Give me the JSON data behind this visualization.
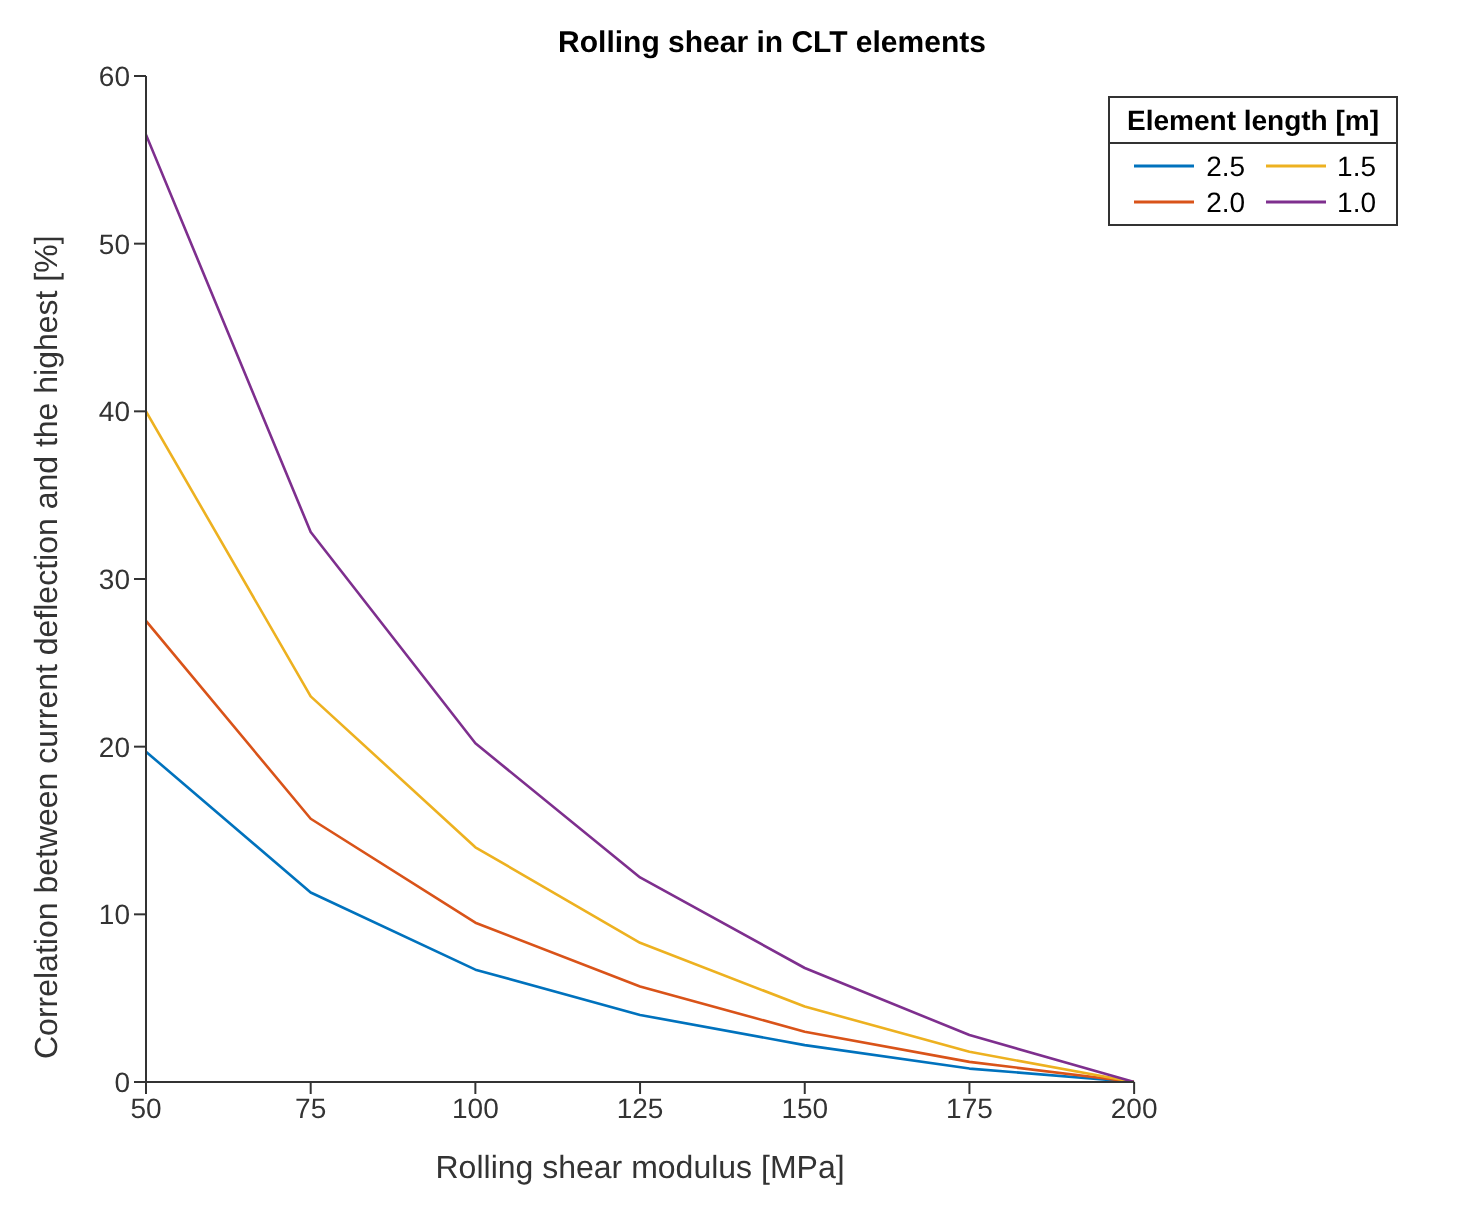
{
  "chart_data": {
    "type": "line",
    "title": "Rolling shear in CLT elements",
    "xlabel": "Rolling shear modulus [MPa]",
    "ylabel": "Correlation between current deflection and the highest [%]",
    "legend_title": "Element length [m]",
    "legend": "top right",
    "grid": false,
    "marker": "none",
    "line_style": "solid",
    "x": [
      50,
      75,
      100,
      125,
      150,
      175,
      200
    ],
    "xlim": [
      50,
      200
    ],
    "xticks": [
      50,
      75,
      100,
      125,
      150,
      175,
      200
    ],
    "ylim": [
      0,
      60
    ],
    "yticks": [
      0,
      10,
      20,
      30,
      40,
      50,
      60
    ],
    "series": [
      {
        "name": "2.5",
        "color": "#0072bd",
        "values": [
          19.7,
          11.3,
          6.7,
          4.0,
          2.2,
          0.8,
          0
        ]
      },
      {
        "name": "2.0",
        "color": "#d95319",
        "values": [
          27.5,
          15.7,
          9.5,
          5.7,
          3.0,
          1.2,
          0
        ]
      },
      {
        "name": "1.5",
        "color": "#edb120",
        "values": [
          40,
          23,
          14,
          8.3,
          4.5,
          1.8,
          0
        ]
      },
      {
        "name": "1.0",
        "color": "#7e2f8e",
        "values": [
          56.5,
          32.8,
          20.2,
          12.2,
          6.8,
          2.8,
          0
        ]
      }
    ]
  }
}
